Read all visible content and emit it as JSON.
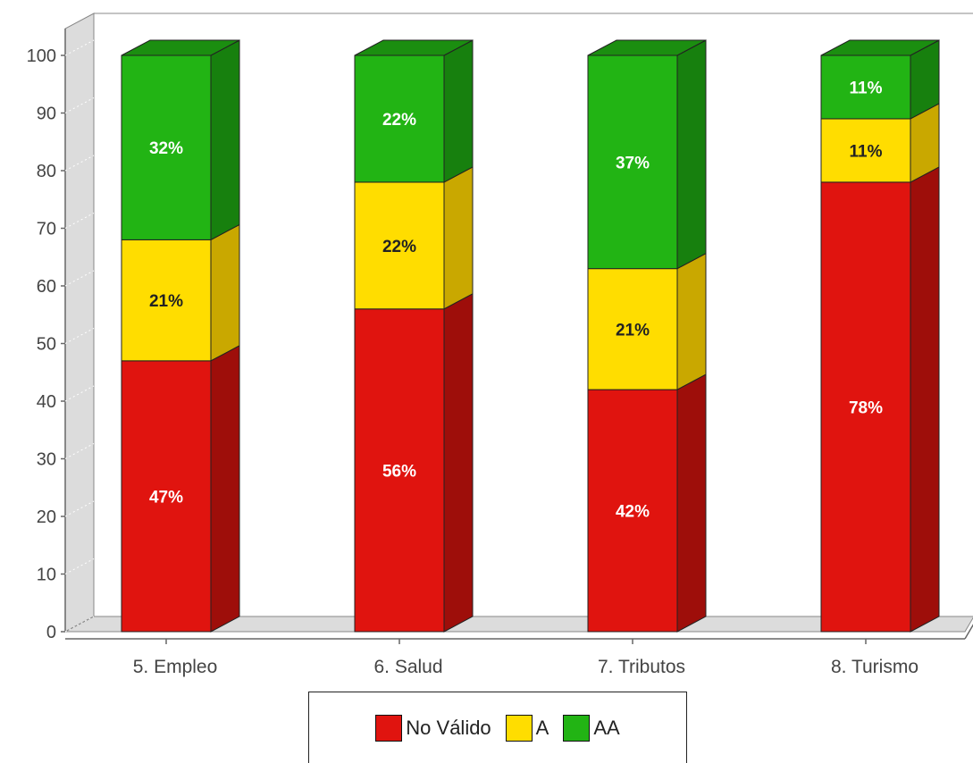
{
  "chart_data": {
    "type": "bar",
    "stacked": true,
    "three_d": true,
    "categories": [
      "5. Empleo",
      "6. Salud",
      "7. Tributos",
      "8. Turismo"
    ],
    "series": [
      {
        "name": "No Válido",
        "values": [
          47,
          56,
          42,
          78
        ],
        "labels": [
          "47%",
          "56%",
          "42%",
          "78%"
        ],
        "color": "#e0140f",
        "side_color": "#9e0e0a",
        "top_color": "#b0100c",
        "label_color": "#ffffff"
      },
      {
        "name": "A",
        "values": [
          21,
          22,
          21,
          11
        ],
        "labels": [
          "21%",
          "22%",
          "21%",
          "11%"
        ],
        "color": "#ffdd00",
        "side_color": "#c9a800",
        "top_color": "#d9bc00",
        "label_color": "#222222"
      },
      {
        "name": "AA",
        "values": [
          32,
          22,
          37,
          11
        ],
        "labels": [
          "32%",
          "22%",
          "37%",
          "11%"
        ],
        "color": "#22b414",
        "side_color": "#17800e",
        "top_color": "#1b8e10",
        "label_color": "#ffffff"
      }
    ],
    "yticks": [
      "0",
      "10",
      "20",
      "30",
      "40",
      "50",
      "60",
      "70",
      "80",
      "90",
      "100"
    ],
    "ylim": [
      0,
      100
    ],
    "legend_position": "bottom-center",
    "grid": true
  },
  "legend": {
    "items": [
      {
        "label": "No Válido",
        "color": "#e0140f"
      },
      {
        "label": "A",
        "color": "#ffdd00"
      },
      {
        "label": "AA",
        "color": "#22b414"
      }
    ]
  }
}
